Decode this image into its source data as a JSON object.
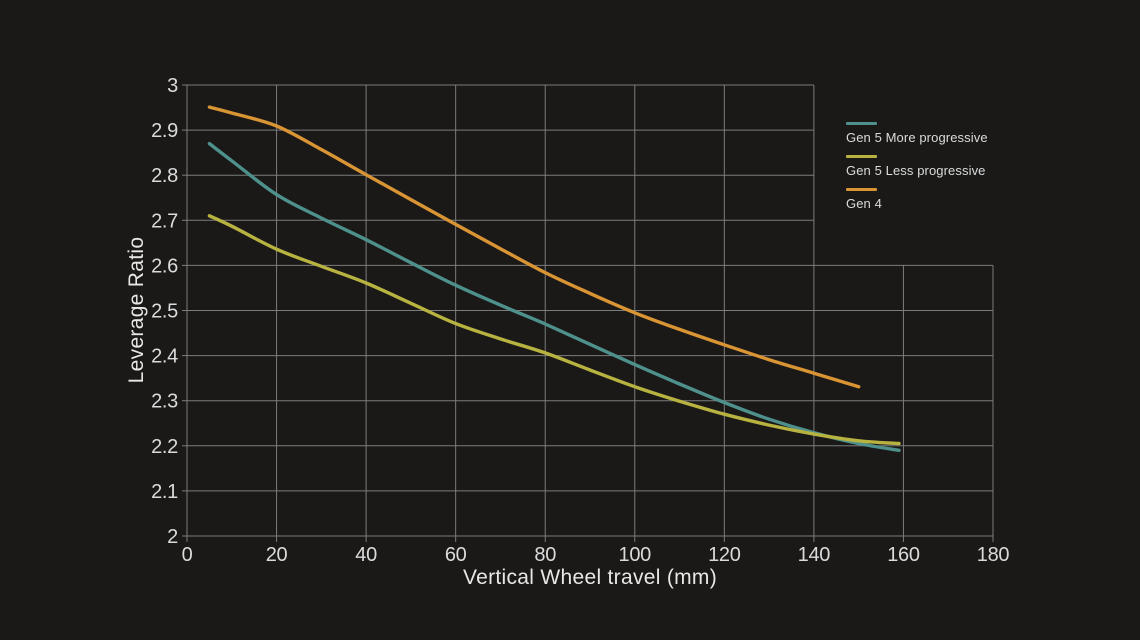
{
  "colors": {
    "background": "#1A1918",
    "grid": "#7C7C7C",
    "tick_text": "#DBDBDB",
    "title_text": "#E9E7E3"
  },
  "chart_data": {
    "type": "line",
    "title": "",
    "xlabel": "Vertical Wheel travel (mm)",
    "ylabel": "Leverage Ratio",
    "xlim": [
      0,
      180
    ],
    "ylim": [
      2,
      3
    ],
    "xticks": [
      0,
      20,
      40,
      60,
      80,
      100,
      120,
      140,
      160,
      180
    ],
    "yticks": [
      2,
      2.1,
      2.2,
      2.3,
      2.4,
      2.5,
      2.6,
      2.7,
      2.8,
      2.9,
      3
    ],
    "grid": true,
    "grid_notch": {
      "x": 140,
      "y": 2.6
    },
    "legend_position": "top-right",
    "line_width": 3.4,
    "series": [
      {
        "name": "Gen 5 More progressive",
        "color": "#4E908B",
        "points": [
          [
            5,
            2.87
          ],
          [
            10,
            2.832
          ],
          [
            20,
            2.757
          ],
          [
            30,
            2.705
          ],
          [
            40,
            2.657
          ],
          [
            50,
            2.606
          ],
          [
            60,
            2.556
          ],
          [
            70,
            2.512
          ],
          [
            80,
            2.47
          ],
          [
            90,
            2.425
          ],
          [
            100,
            2.38
          ],
          [
            110,
            2.337
          ],
          [
            120,
            2.296
          ],
          [
            130,
            2.259
          ],
          [
            140,
            2.229
          ],
          [
            150,
            2.205
          ],
          [
            159,
            2.19
          ]
        ]
      },
      {
        "name": "Gen 5 Less progressive",
        "color": "#B8B340",
        "points": [
          [
            5,
            2.71
          ],
          [
            10,
            2.687
          ],
          [
            20,
            2.636
          ],
          [
            30,
            2.598
          ],
          [
            40,
            2.561
          ],
          [
            50,
            2.516
          ],
          [
            60,
            2.471
          ],
          [
            70,
            2.437
          ],
          [
            80,
            2.406
          ],
          [
            90,
            2.368
          ],
          [
            100,
            2.331
          ],
          [
            110,
            2.299
          ],
          [
            120,
            2.27
          ],
          [
            130,
            2.246
          ],
          [
            140,
            2.226
          ],
          [
            150,
            2.211
          ],
          [
            159,
            2.205
          ]
        ]
      },
      {
        "name": "Gen 4",
        "color": "#D99434",
        "points": [
          [
            5,
            2.951
          ],
          [
            10,
            2.938
          ],
          [
            20,
            2.909
          ],
          [
            30,
            2.857
          ],
          [
            40,
            2.801
          ],
          [
            50,
            2.746
          ],
          [
            60,
            2.691
          ],
          [
            70,
            2.637
          ],
          [
            80,
            2.584
          ],
          [
            90,
            2.538
          ],
          [
            100,
            2.495
          ],
          [
            110,
            2.458
          ],
          [
            120,
            2.424
          ],
          [
            130,
            2.391
          ],
          [
            140,
            2.361
          ],
          [
            150,
            2.331
          ]
        ]
      }
    ]
  }
}
